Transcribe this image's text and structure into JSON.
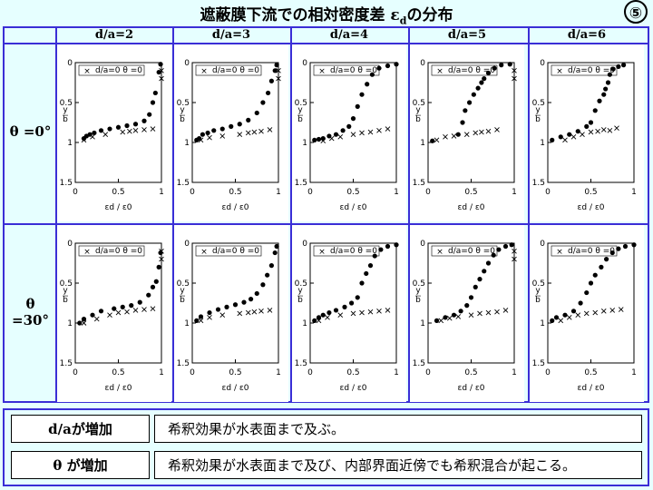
{
  "title": {
    "main": "遮蔽膜下流での相対密度差 ε",
    "sub": "d",
    "suffix": "の分布"
  },
  "slide_number": "⑤",
  "columns": [
    "d/a=2",
    "d/a=3",
    "d/a=4",
    "d/a=5",
    "d/a=6"
  ],
  "rows": [
    "θ =0°",
    "θ =30°"
  ],
  "axis": {
    "x_ticks": [
      "0",
      "0.5",
      "1"
    ],
    "y_ticks": [
      "0",
      "0.5",
      "1",
      "1.5"
    ],
    "ylabel_y": "y",
    "ylabel_b": "b",
    "xlabel": "εd / ε0",
    "legend": "d/a=0 θ =0"
  },
  "chart_data": {
    "type": "scatter",
    "note_series": [
      "measured",
      "d/a=0 θ =0"
    ],
    "xlim": [
      0,
      1
    ],
    "ylim": [
      1.5,
      0
    ],
    "panels": [
      {
        "row": 0,
        "col": 0,
        "measured": [
          [
            0.1,
            0.95
          ],
          [
            0.13,
            0.92
          ],
          [
            0.17,
            0.9
          ],
          [
            0.22,
            0.88
          ],
          [
            0.3,
            0.85
          ],
          [
            0.4,
            0.83
          ],
          [
            0.5,
            0.81
          ],
          [
            0.6,
            0.79
          ],
          [
            0.7,
            0.77
          ],
          [
            0.8,
            0.73
          ],
          [
            0.86,
            0.65
          ],
          [
            0.9,
            0.5
          ],
          [
            0.93,
            0.38
          ],
          [
            0.97,
            0.12
          ],
          [
            0.99,
            0.02
          ]
        ],
        "ref": [
          [
            0.1,
            0.97
          ],
          [
            0.2,
            0.93
          ],
          [
            0.35,
            0.9
          ],
          [
            0.55,
            0.87
          ],
          [
            0.63,
            0.86
          ],
          [
            0.7,
            0.85
          ],
          [
            0.8,
            0.84
          ],
          [
            0.9,
            0.83
          ],
          [
            1.0,
            0.1
          ],
          [
            1.0,
            0.2
          ]
        ]
      },
      {
        "row": 0,
        "col": 1,
        "measured": [
          [
            0.05,
            0.97
          ],
          [
            0.08,
            0.95
          ],
          [
            0.12,
            0.9
          ],
          [
            0.18,
            0.88
          ],
          [
            0.25,
            0.85
          ],
          [
            0.35,
            0.83
          ],
          [
            0.45,
            0.8
          ],
          [
            0.55,
            0.77
          ],
          [
            0.65,
            0.72
          ],
          [
            0.75,
            0.63
          ],
          [
            0.82,
            0.5
          ],
          [
            0.88,
            0.38
          ],
          [
            0.92,
            0.23
          ],
          [
            0.96,
            0.1
          ],
          [
            0.98,
            0.03
          ]
        ],
        "ref": [
          [
            0.1,
            0.97
          ],
          [
            0.2,
            0.94
          ],
          [
            0.35,
            0.92
          ],
          [
            0.55,
            0.9
          ],
          [
            0.65,
            0.88
          ],
          [
            0.72,
            0.87
          ],
          [
            0.8,
            0.86
          ],
          [
            0.9,
            0.84
          ],
          [
            1.0,
            0.1
          ],
          [
            1.0,
            0.2
          ]
        ]
      },
      {
        "row": 0,
        "col": 2,
        "measured": [
          [
            0.05,
            0.97
          ],
          [
            0.1,
            0.96
          ],
          [
            0.15,
            0.95
          ],
          [
            0.22,
            0.92
          ],
          [
            0.3,
            0.9
          ],
          [
            0.38,
            0.85
          ],
          [
            0.45,
            0.8
          ],
          [
            0.5,
            0.7
          ],
          [
            0.55,
            0.55
          ],
          [
            0.6,
            0.4
          ],
          [
            0.66,
            0.27
          ],
          [
            0.72,
            0.15
          ],
          [
            0.8,
            0.07
          ],
          [
            0.9,
            0.04
          ],
          [
            1.0,
            0.02
          ]
        ],
        "ref": [
          [
            0.15,
            0.98
          ],
          [
            0.25,
            0.95
          ],
          [
            0.35,
            0.93
          ],
          [
            0.5,
            0.9
          ],
          [
            0.6,
            0.88
          ],
          [
            0.7,
            0.87
          ],
          [
            0.8,
            0.85
          ],
          [
            0.9,
            0.83
          ]
        ]
      },
      {
        "row": 0,
        "col": 3,
        "measured": [
          [
            0.05,
            0.98
          ],
          [
            0.35,
            0.9
          ],
          [
            0.4,
            0.75
          ],
          [
            0.43,
            0.6
          ],
          [
            0.48,
            0.5
          ],
          [
            0.53,
            0.4
          ],
          [
            0.58,
            0.32
          ],
          [
            0.62,
            0.25
          ],
          [
            0.65,
            0.2
          ],
          [
            0.7,
            0.13
          ],
          [
            0.77,
            0.07
          ],
          [
            0.85,
            0.03
          ],
          [
            0.95,
            0.02
          ]
        ],
        "ref": [
          [
            0.1,
            0.97
          ],
          [
            0.2,
            0.93
          ],
          [
            0.3,
            0.92
          ],
          [
            0.45,
            0.9
          ],
          [
            0.55,
            0.88
          ],
          [
            0.62,
            0.87
          ],
          [
            0.7,
            0.86
          ],
          [
            0.8,
            0.84
          ],
          [
            1.0,
            0.1
          ],
          [
            1.0,
            0.2
          ]
        ]
      },
      {
        "row": 0,
        "col": 4,
        "measured": [
          [
            0.05,
            0.97
          ],
          [
            0.15,
            0.93
          ],
          [
            0.25,
            0.9
          ],
          [
            0.35,
            0.86
          ],
          [
            0.45,
            0.8
          ],
          [
            0.5,
            0.75
          ],
          [
            0.55,
            0.6
          ],
          [
            0.6,
            0.48
          ],
          [
            0.65,
            0.4
          ],
          [
            0.67,
            0.33
          ],
          [
            0.7,
            0.25
          ],
          [
            0.72,
            0.15
          ],
          [
            0.76,
            0.08
          ],
          [
            0.82,
            0.05
          ],
          [
            0.88,
            0.03
          ]
        ],
        "ref": [
          [
            0.2,
            0.97
          ],
          [
            0.3,
            0.93
          ],
          [
            0.4,
            0.9
          ],
          [
            0.5,
            0.87
          ],
          [
            0.58,
            0.86
          ],
          [
            0.65,
            0.84
          ],
          [
            0.72,
            0.85
          ],
          [
            0.8,
            0.82
          ]
        ]
      },
      {
        "row": 1,
        "col": 0,
        "measured": [
          [
            0.05,
            1.0
          ],
          [
            0.1,
            0.95
          ],
          [
            0.2,
            0.9
          ],
          [
            0.3,
            0.85
          ],
          [
            0.45,
            0.82
          ],
          [
            0.55,
            0.8
          ],
          [
            0.65,
            0.78
          ],
          [
            0.75,
            0.74
          ],
          [
            0.85,
            0.65
          ],
          [
            0.9,
            0.55
          ],
          [
            0.94,
            0.48
          ],
          [
            0.97,
            0.3
          ],
          [
            0.99,
            0.12
          ]
        ],
        "ref": [
          [
            0.1,
            1.0
          ],
          [
            0.25,
            0.95
          ],
          [
            0.4,
            0.9
          ],
          [
            0.5,
            0.87
          ],
          [
            0.6,
            0.86
          ],
          [
            0.7,
            0.84
          ],
          [
            0.8,
            0.83
          ],
          [
            0.9,
            0.82
          ],
          [
            1.0,
            0.1
          ],
          [
            1.0,
            0.2
          ]
        ]
      },
      {
        "row": 1,
        "col": 1,
        "measured": [
          [
            0.05,
            0.97
          ],
          [
            0.1,
            0.92
          ],
          [
            0.2,
            0.87
          ],
          [
            0.3,
            0.83
          ],
          [
            0.4,
            0.8
          ],
          [
            0.5,
            0.77
          ],
          [
            0.6,
            0.74
          ],
          [
            0.68,
            0.7
          ],
          [
            0.75,
            0.63
          ],
          [
            0.82,
            0.52
          ],
          [
            0.87,
            0.4
          ],
          [
            0.92,
            0.28
          ],
          [
            0.96,
            0.12
          ],
          [
            0.98,
            0.04
          ]
        ],
        "ref": [
          [
            0.1,
            0.97
          ],
          [
            0.2,
            0.93
          ],
          [
            0.35,
            0.9
          ],
          [
            0.55,
            0.88
          ],
          [
            0.65,
            0.87
          ],
          [
            0.72,
            0.86
          ],
          [
            0.8,
            0.85
          ],
          [
            0.9,
            0.84
          ]
        ]
      },
      {
        "row": 1,
        "col": 2,
        "measured": [
          [
            0.05,
            0.97
          ],
          [
            0.1,
            0.93
          ],
          [
            0.15,
            0.9
          ],
          [
            0.22,
            0.87
          ],
          [
            0.3,
            0.84
          ],
          [
            0.4,
            0.8
          ],
          [
            0.48,
            0.75
          ],
          [
            0.55,
            0.68
          ],
          [
            0.6,
            0.5
          ],
          [
            0.65,
            0.38
          ],
          [
            0.7,
            0.28
          ],
          [
            0.75,
            0.16
          ],
          [
            0.82,
            0.08
          ],
          [
            0.9,
            0.04
          ],
          [
            1.0,
            0.02
          ]
        ],
        "ref": [
          [
            0.1,
            0.97
          ],
          [
            0.2,
            0.93
          ],
          [
            0.35,
            0.9
          ],
          [
            0.5,
            0.88
          ],
          [
            0.6,
            0.87
          ],
          [
            0.7,
            0.86
          ],
          [
            0.8,
            0.85
          ],
          [
            0.9,
            0.84
          ]
        ]
      },
      {
        "row": 1,
        "col": 3,
        "measured": [
          [
            0.1,
            0.97
          ],
          [
            0.2,
            0.93
          ],
          [
            0.3,
            0.9
          ],
          [
            0.38,
            0.85
          ],
          [
            0.45,
            0.78
          ],
          [
            0.5,
            0.68
          ],
          [
            0.55,
            0.55
          ],
          [
            0.6,
            0.45
          ],
          [
            0.65,
            0.35
          ],
          [
            0.7,
            0.25
          ],
          [
            0.76,
            0.15
          ],
          [
            0.82,
            0.08
          ],
          [
            0.9,
            0.04
          ],
          [
            0.97,
            0.02
          ]
        ],
        "ref": [
          [
            0.15,
            0.97
          ],
          [
            0.25,
            0.94
          ],
          [
            0.35,
            0.92
          ],
          [
            0.5,
            0.9
          ],
          [
            0.6,
            0.88
          ],
          [
            0.7,
            0.87
          ],
          [
            0.8,
            0.86
          ],
          [
            0.9,
            0.84
          ],
          [
            1.0,
            0.1
          ],
          [
            1.0,
            0.2
          ]
        ]
      },
      {
        "row": 1,
        "col": 4,
        "measured": [
          [
            0.05,
            0.97
          ],
          [
            0.1,
            0.93
          ],
          [
            0.2,
            0.9
          ],
          [
            0.3,
            0.85
          ],
          [
            0.38,
            0.75
          ],
          [
            0.45,
            0.62
          ],
          [
            0.5,
            0.5
          ],
          [
            0.55,
            0.4
          ],
          [
            0.62,
            0.3
          ],
          [
            0.68,
            0.2
          ],
          [
            0.75,
            0.12
          ],
          [
            0.82,
            0.07
          ],
          [
            0.9,
            0.04
          ],
          [
            1.0,
            0.02
          ]
        ],
        "ref": [
          [
            0.15,
            0.97
          ],
          [
            0.25,
            0.93
          ],
          [
            0.35,
            0.9
          ],
          [
            0.45,
            0.88
          ],
          [
            0.55,
            0.87
          ],
          [
            0.65,
            0.85
          ],
          [
            0.75,
            0.84
          ],
          [
            0.85,
            0.83
          ]
        ]
      }
    ]
  },
  "summary": [
    {
      "label": "d/aが増加",
      "text": "希釈効果が水表面まで及ぶ。"
    },
    {
      "label": "θ が増加",
      "text": "希釈効果が水表面まで及び、内部界面近傍でも希釈混合が起こる。"
    }
  ]
}
